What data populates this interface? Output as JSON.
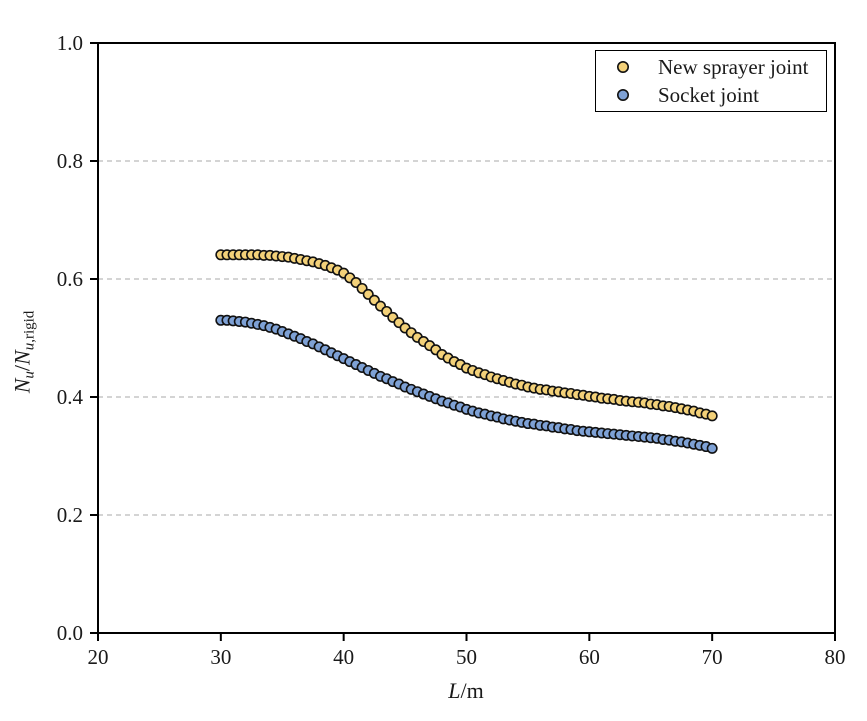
{
  "figure": {
    "background": "#ffffff",
    "frame_color": "#000000",
    "gridline_color": "#aaaaaa",
    "tick_label_color": "#1a1a1a"
  },
  "x_axis_label": {
    "variable": "L",
    "slash": "/",
    "unit": "m"
  },
  "y_axis_label": {
    "n1": "N",
    "sub1": "u",
    "slash": "/",
    "n2": "N",
    "sub2_var": "u",
    "sub2_rest": ",rigid"
  },
  "legend": {
    "items": [
      {
        "label": "New sprayer joint",
        "color": "#F3D179"
      },
      {
        "label": "Socket joint",
        "color": "#7EA1D5"
      }
    ]
  },
  "chart_data": {
    "type": "scatter",
    "title": "",
    "xlabel": "L/m",
    "ylabel": "Nu/Nu,rigid",
    "xlim": [
      20,
      80
    ],
    "ylim": [
      0.0,
      1.0
    ],
    "x_tick_values": [
      20,
      30,
      40,
      50,
      60,
      70,
      80
    ],
    "x_tick_labels": [
      "20",
      "30",
      "40",
      "50",
      "60",
      "70",
      "80"
    ],
    "y_tick_values": [
      0.0,
      0.2,
      0.4,
      0.6,
      0.8,
      1.0
    ],
    "y_tick_labels": [
      "0.0",
      "0.2",
      "0.4",
      "0.6",
      "0.8",
      "1.0"
    ],
    "grid": "horizontal dashed gridlines at 0.2, 0.4, 0.6, 0.8",
    "legend_position": "top-right",
    "marker": {
      "shape": "circle",
      "radius_px": 4.7,
      "stroke": "#111111",
      "stroke_width": 1.6
    },
    "x": [
      30,
      30.5,
      31,
      31.5,
      32,
      32.5,
      33,
      33.5,
      34,
      34.5,
      35,
      35.5,
      36,
      36.5,
      37,
      37.5,
      38,
      38.5,
      39,
      39.5,
      40,
      40.5,
      41,
      41.5,
      42,
      42.5,
      43,
      43.5,
      44,
      44.5,
      45,
      45.5,
      46,
      46.5,
      47,
      47.5,
      48,
      48.5,
      49,
      49.5,
      50,
      50.5,
      51,
      51.5,
      52,
      52.5,
      53,
      53.5,
      54,
      54.5,
      55,
      55.5,
      56,
      56.5,
      57,
      57.5,
      58,
      58.5,
      59,
      59.5,
      60,
      60.5,
      61,
      61.5,
      62,
      62.5,
      63,
      63.5,
      64,
      64.5,
      65,
      65.5,
      66,
      66.5,
      67,
      67.5,
      68,
      68.5,
      69,
      69.5,
      70
    ],
    "series": [
      {
        "name": "New sprayer joint",
        "color": "#F3D179",
        "values": [
          0.641,
          0.641,
          0.641,
          0.641,
          0.641,
          0.641,
          0.641,
          0.64,
          0.64,
          0.639,
          0.638,
          0.637,
          0.635,
          0.633,
          0.631,
          0.629,
          0.626,
          0.623,
          0.619,
          0.615,
          0.61,
          0.602,
          0.594,
          0.584,
          0.574,
          0.564,
          0.554,
          0.545,
          0.535,
          0.526,
          0.517,
          0.509,
          0.501,
          0.494,
          0.487,
          0.48,
          0.472,
          0.466,
          0.46,
          0.455,
          0.449,
          0.445,
          0.441,
          0.438,
          0.434,
          0.431,
          0.428,
          0.425,
          0.422,
          0.42,
          0.417,
          0.415,
          0.413,
          0.412,
          0.41,
          0.409,
          0.407,
          0.406,
          0.404,
          0.403,
          0.401,
          0.4,
          0.398,
          0.397,
          0.396,
          0.394,
          0.393,
          0.392,
          0.391,
          0.39,
          0.388,
          0.387,
          0.385,
          0.384,
          0.382,
          0.38,
          0.378,
          0.376,
          0.373,
          0.371,
          0.368
        ]
      },
      {
        "name": "Socket joint",
        "color": "#7EA1D5",
        "values": [
          0.53,
          0.53,
          0.529,
          0.528,
          0.527,
          0.525,
          0.523,
          0.521,
          0.518,
          0.515,
          0.511,
          0.507,
          0.503,
          0.499,
          0.494,
          0.49,
          0.485,
          0.48,
          0.475,
          0.47,
          0.465,
          0.46,
          0.455,
          0.45,
          0.445,
          0.44,
          0.435,
          0.431,
          0.426,
          0.422,
          0.417,
          0.413,
          0.409,
          0.405,
          0.401,
          0.397,
          0.393,
          0.39,
          0.386,
          0.383,
          0.379,
          0.376,
          0.373,
          0.371,
          0.368,
          0.366,
          0.363,
          0.361,
          0.359,
          0.357,
          0.355,
          0.354,
          0.352,
          0.351,
          0.349,
          0.348,
          0.346,
          0.345,
          0.343,
          0.342,
          0.341,
          0.34,
          0.339,
          0.338,
          0.337,
          0.336,
          0.335,
          0.334,
          0.333,
          0.332,
          0.331,
          0.33,
          0.328,
          0.327,
          0.325,
          0.324,
          0.322,
          0.32,
          0.318,
          0.316,
          0.313
        ]
      }
    ]
  }
}
